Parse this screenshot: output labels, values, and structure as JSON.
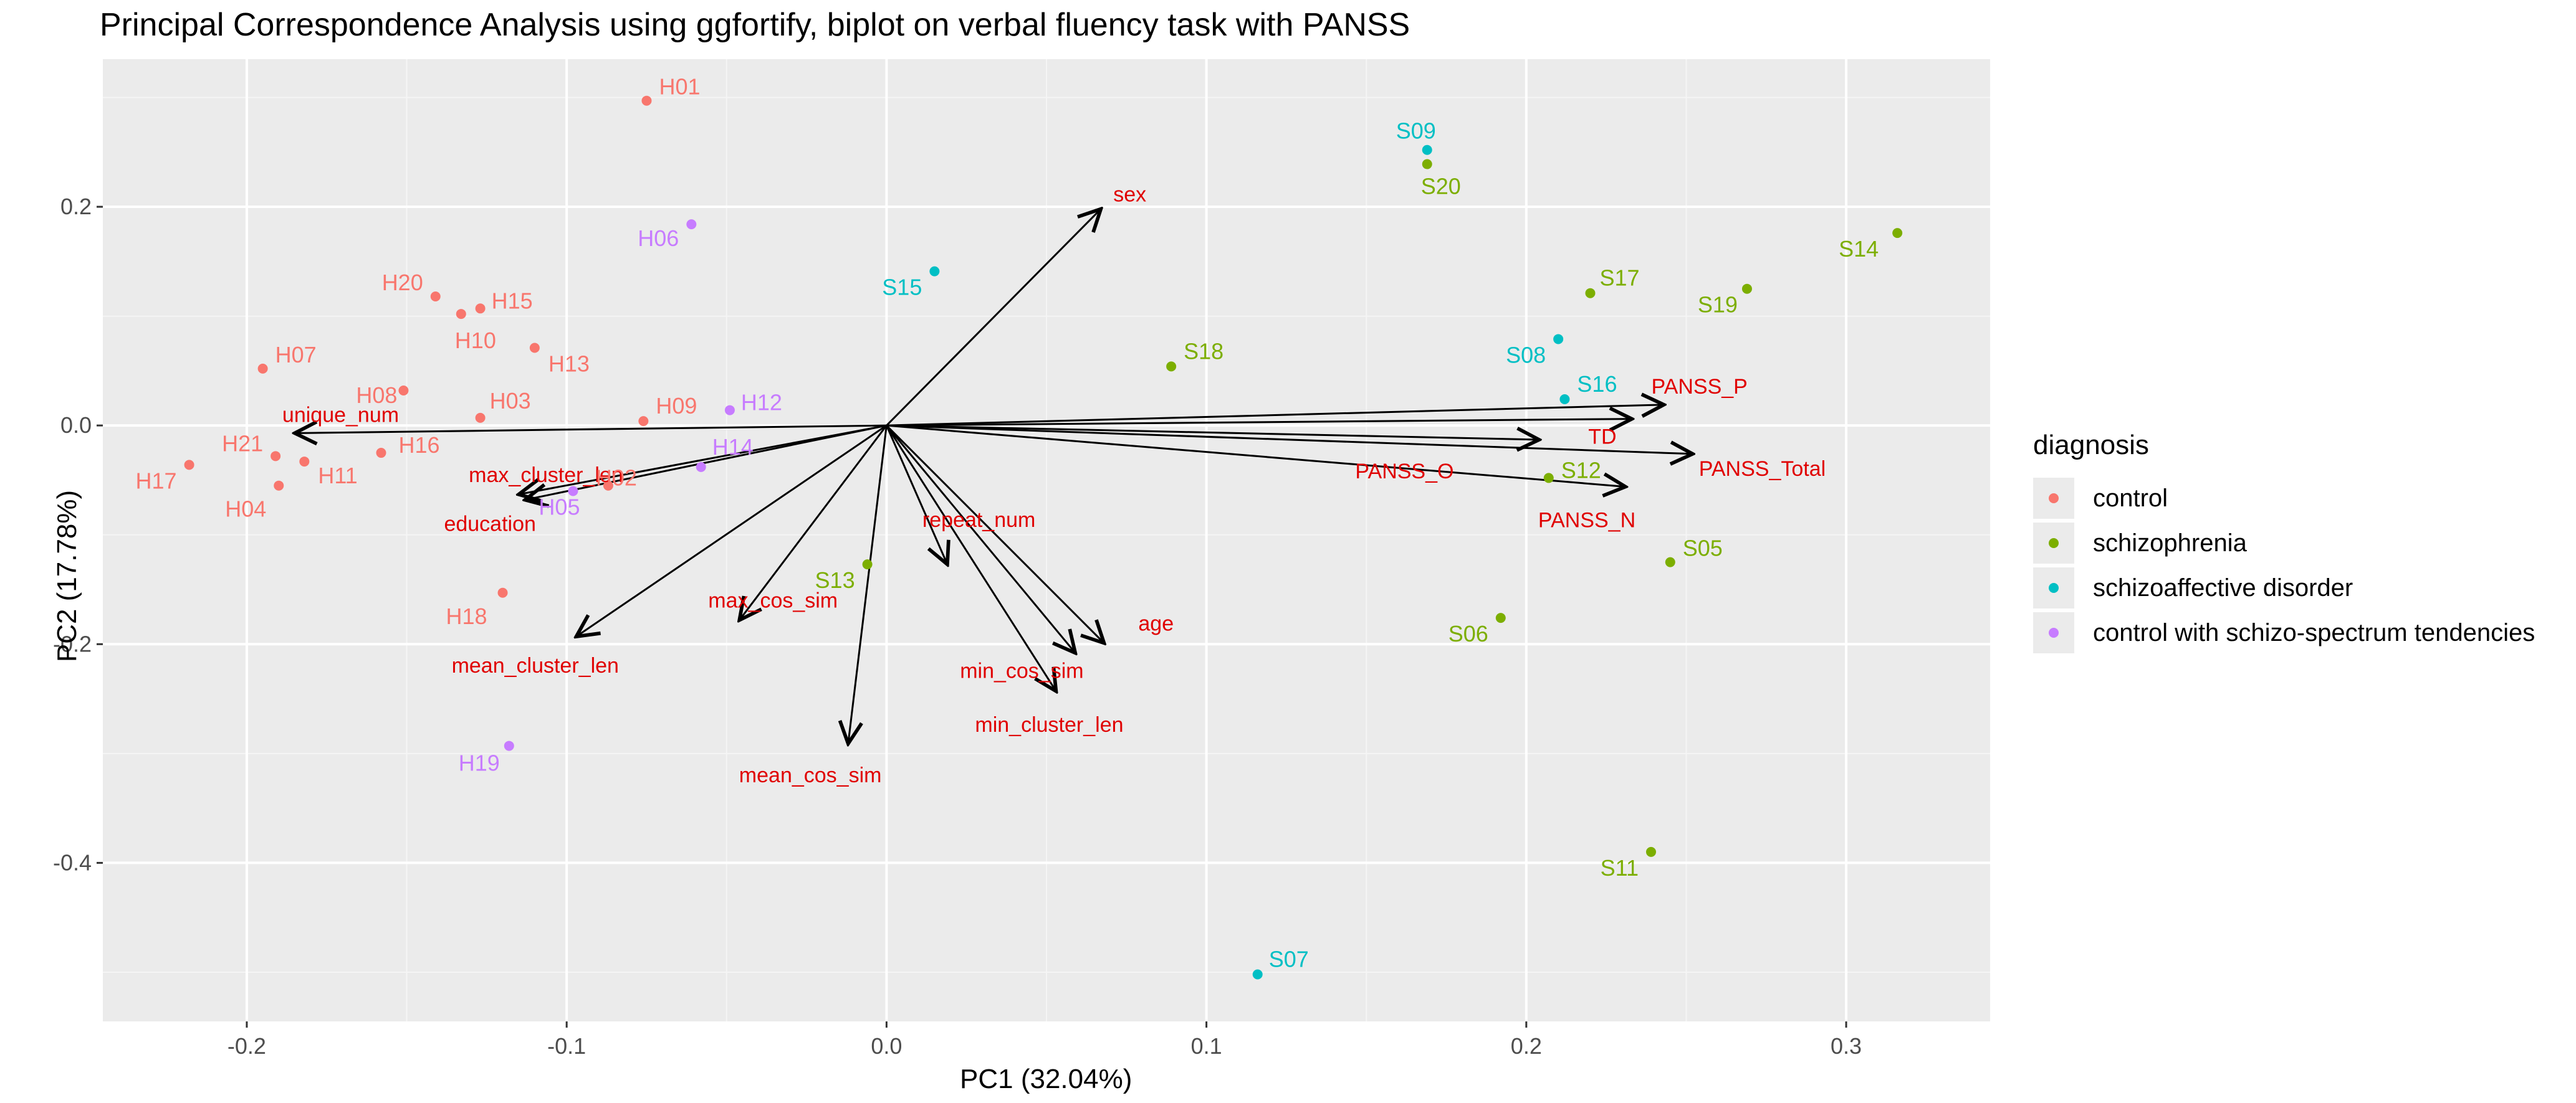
{
  "chart_data": {
    "type": "scatter",
    "title": "Principal Correspondence Analysis using ggfortify, biplot on verbal fluency task with PANSS",
    "xlabel": "PC1 (32.04%)",
    "ylabel": "PC2 (17.78%)",
    "xlim": [
      -0.245,
      0.345
    ],
    "ylim": [
      -0.545,
      0.335
    ],
    "x_ticks": [
      -0.2,
      -0.1,
      0.0,
      0.1,
      0.2,
      0.3
    ],
    "x_tick_labels": [
      "-0.2",
      "-0.1",
      "0.0",
      "0.1",
      "0.2",
      "0.3"
    ],
    "y_ticks": [
      -0.4,
      -0.2,
      0.0,
      0.2
    ],
    "y_tick_labels": [
      "-0.4",
      "-0.2",
      "0.0",
      "0.2"
    ],
    "grid": true,
    "legend": {
      "title": "diagnosis",
      "placement": "right",
      "key_glyph": "a",
      "entries": [
        {
          "key": "control",
          "label": "control",
          "color": "#F8766D"
        },
        {
          "key": "schizophrenia",
          "label": "schizophrenia",
          "color": "#7CAE00"
        },
        {
          "key": "schizoaffective",
          "label": "schizoaffective disorder",
          "color": "#00BFC4"
        },
        {
          "key": "spectrum",
          "label": "control with schizo-spectrum tendencies",
          "color": "#C77CFF"
        }
      ]
    },
    "points": [
      {
        "label": "H01",
        "group": "control",
        "x": -0.075,
        "y": 0.297
      },
      {
        "label": "H06",
        "group": "spectrum",
        "x": -0.061,
        "y": 0.184
      },
      {
        "label": "H20",
        "group": "control",
        "x": -0.141,
        "y": 0.118
      },
      {
        "label": "H15",
        "group": "control",
        "x": -0.127,
        "y": 0.107
      },
      {
        "label": "H10",
        "group": "control",
        "x": -0.133,
        "y": 0.102
      },
      {
        "label": "H13",
        "group": "control",
        "x": -0.11,
        "y": 0.071
      },
      {
        "label": "H07",
        "group": "control",
        "x": -0.195,
        "y": 0.052
      },
      {
        "label": "H08",
        "group": "control",
        "x": -0.151,
        "y": 0.032
      },
      {
        "label": "H03",
        "group": "control",
        "x": -0.127,
        "y": 0.007
      },
      {
        "label": "H09",
        "group": "control",
        "x": -0.076,
        "y": 0.004
      },
      {
        "label": "H12",
        "group": "spectrum",
        "x": -0.049,
        "y": 0.014
      },
      {
        "label": "H21",
        "group": "control",
        "x": -0.191,
        "y": -0.028
      },
      {
        "label": "H16",
        "group": "control",
        "x": -0.158,
        "y": -0.025
      },
      {
        "label": "H17",
        "group": "control",
        "x": -0.218,
        "y": -0.036
      },
      {
        "label": "H11",
        "group": "control",
        "x": -0.182,
        "y": -0.033
      },
      {
        "label": "H04",
        "group": "control",
        "x": -0.19,
        "y": -0.055
      },
      {
        "label": "H14",
        "group": "spectrum",
        "x": -0.058,
        "y": -0.038
      },
      {
        "label": "H02",
        "group": "control",
        "x": -0.087,
        "y": -0.055
      },
      {
        "label": "H05",
        "group": "spectrum",
        "x": -0.098,
        "y": -0.06
      },
      {
        "label": "H18",
        "group": "control",
        "x": -0.12,
        "y": -0.153
      },
      {
        "label": "H19",
        "group": "spectrum",
        "x": -0.118,
        "y": -0.293
      },
      {
        "label": "S09",
        "group": "schizoaffective",
        "x": 0.169,
        "y": 0.252
      },
      {
        "label": "S20",
        "group": "schizophrenia",
        "x": 0.169,
        "y": 0.239
      },
      {
        "label": "S15",
        "group": "schizoaffective",
        "x": 0.015,
        "y": 0.141
      },
      {
        "label": "S14",
        "group": "schizophrenia",
        "x": 0.316,
        "y": 0.176
      },
      {
        "label": "S17",
        "group": "schizophrenia",
        "x": 0.22,
        "y": 0.121
      },
      {
        "label": "S19",
        "group": "schizophrenia",
        "x": 0.269,
        "y": 0.125
      },
      {
        "label": "S08",
        "group": "schizoaffective",
        "x": 0.21,
        "y": 0.079
      },
      {
        "label": "S18",
        "group": "schizophrenia",
        "x": 0.089,
        "y": 0.054
      },
      {
        "label": "S16",
        "group": "schizoaffective",
        "x": 0.212,
        "y": 0.024
      },
      {
        "label": "S12",
        "group": "schizophrenia",
        "x": 0.207,
        "y": -0.048
      },
      {
        "label": "S05",
        "group": "schizophrenia",
        "x": 0.245,
        "y": -0.125
      },
      {
        "label": "S13",
        "group": "schizophrenia",
        "x": -0.006,
        "y": -0.127
      },
      {
        "label": "S06",
        "group": "schizophrenia",
        "x": 0.192,
        "y": -0.176
      },
      {
        "label": "S11",
        "group": "schizophrenia",
        "x": 0.239,
        "y": -0.39
      },
      {
        "label": "S07",
        "group": "schizoaffective",
        "x": 0.116,
        "y": -0.502
      }
    ],
    "loadings": [
      {
        "label": "sex",
        "x": 0.067,
        "y": 0.198
      },
      {
        "label": "unique_num",
        "x": -0.185,
        "y": -0.007
      },
      {
        "label": "max_cluster_len",
        "x": -0.115,
        "y": -0.063
      },
      {
        "label": "education",
        "x": -0.113,
        "y": -0.068
      },
      {
        "label": "mean_cluster_len",
        "x": -0.097,
        "y": -0.193
      },
      {
        "label": "max_cos_sim",
        "x": -0.046,
        "y": -0.178
      },
      {
        "label": "repeat_num",
        "x": 0.019,
        "y": -0.127
      },
      {
        "label": "mean_cos_sim",
        "x": -0.012,
        "y": -0.291
      },
      {
        "label": "min_cos_sim",
        "x": 0.059,
        "y": -0.208
      },
      {
        "label": "min_cluster_len",
        "x": 0.053,
        "y": -0.243
      },
      {
        "label": "age",
        "x": 0.068,
        "y": -0.199
      },
      {
        "label": "PANSS_P",
        "x": 0.243,
        "y": 0.019
      },
      {
        "label": "TD",
        "x": 0.233,
        "y": 0.006
      },
      {
        "label": "PANSS_O",
        "x": 0.204,
        "y": -0.013
      },
      {
        "label": "PANSS_Total",
        "x": 0.252,
        "y": -0.026
      },
      {
        "label": "PANSS_N",
        "x": 0.231,
        "y": -0.056
      }
    ]
  }
}
